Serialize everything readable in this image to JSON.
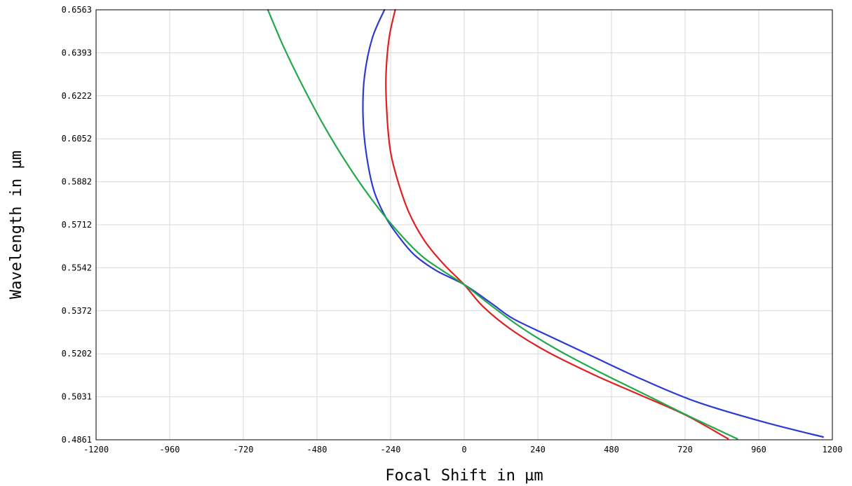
{
  "chart_data": {
    "type": "line",
    "xlabel": "Focal Shift in µm",
    "ylabel": "Wavelength in µm",
    "xlim": [
      -1200,
      1200
    ],
    "ylim": [
      0.4861,
      0.6563
    ],
    "x_ticks": [
      "-1200",
      "-960",
      "-720",
      "-480",
      "-240",
      "0",
      "240",
      "480",
      "720",
      "960",
      "1200"
    ],
    "y_ticks": [
      "0.4861",
      "0.5031",
      "0.5202",
      "0.5372",
      "0.5542",
      "0.5712",
      "0.5882",
      "0.6052",
      "0.6222",
      "0.6393",
      "0.6563"
    ],
    "grid": true,
    "series": [
      {
        "color": "#2e3bd1",
        "points": [
          [
            -260,
            0.6563
          ],
          [
            -300,
            0.645
          ],
          [
            -325,
            0.63
          ],
          [
            -330,
            0.615
          ],
          [
            -320,
            0.6
          ],
          [
            -295,
            0.585
          ],
          [
            -255,
            0.574
          ],
          [
            -210,
            0.566
          ],
          [
            -160,
            0.559
          ],
          [
            -90,
            0.553
          ],
          [
            0,
            0.5475
          ],
          [
            90,
            0.54
          ],
          [
            160,
            0.534
          ],
          [
            280,
            0.527
          ],
          [
            420,
            0.519
          ],
          [
            580,
            0.51
          ],
          [
            760,
            0.501
          ],
          [
            980,
            0.493
          ],
          [
            1170,
            0.4872
          ]
        ]
      },
      {
        "color": "#e02020",
        "points": [
          [
            -225,
            0.6563
          ],
          [
            -245,
            0.645
          ],
          [
            -255,
            0.63
          ],
          [
            -252,
            0.615
          ],
          [
            -240,
            0.6
          ],
          [
            -215,
            0.588
          ],
          [
            -180,
            0.576
          ],
          [
            -130,
            0.565
          ],
          [
            -70,
            0.556
          ],
          [
            0,
            0.5475
          ],
          [
            60,
            0.539
          ],
          [
            150,
            0.53
          ],
          [
            270,
            0.521
          ],
          [
            420,
            0.512
          ],
          [
            570,
            0.504
          ],
          [
            720,
            0.496
          ],
          [
            860,
            0.4865
          ]
        ]
      },
      {
        "color": "#23a94a",
        "points": [
          [
            -640,
            0.6563
          ],
          [
            -590,
            0.642
          ],
          [
            -530,
            0.627
          ],
          [
            -460,
            0.611
          ],
          [
            -380,
            0.595
          ],
          [
            -300,
            0.581
          ],
          [
            -220,
            0.569
          ],
          [
            -140,
            0.559
          ],
          [
            -70,
            0.553
          ],
          [
            0,
            0.5475
          ],
          [
            80,
            0.54
          ],
          [
            180,
            0.531
          ],
          [
            300,
            0.522
          ],
          [
            440,
            0.513
          ],
          [
            590,
            0.504
          ],
          [
            740,
            0.495
          ],
          [
            890,
            0.4865
          ]
        ]
      }
    ]
  }
}
